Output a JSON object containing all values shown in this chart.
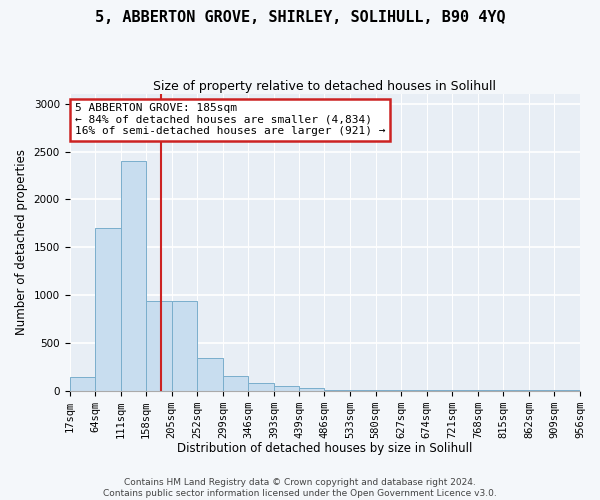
{
  "title": "5, ABBERTON GROVE, SHIRLEY, SOLIHULL, B90 4YQ",
  "subtitle": "Size of property relative to detached houses in Solihull",
  "xlabel": "Distribution of detached houses by size in Solihull",
  "ylabel": "Number of detached properties",
  "footer_line1": "Contains HM Land Registry data © Crown copyright and database right 2024.",
  "footer_line2": "Contains public sector information licensed under the Open Government Licence v3.0.",
  "annotation_line1": "5 ABBERTON GROVE: 185sqm",
  "annotation_line2": "← 84% of detached houses are smaller (4,834)",
  "annotation_line3": "16% of semi-detached houses are larger (921) →",
  "bar_color": "#c8ddef",
  "bar_edgecolor": "#7aaecc",
  "vline_color": "#cc2222",
  "annotation_edgecolor": "#cc2222",
  "bins": [
    17,
    64,
    111,
    158,
    205,
    252,
    299,
    346,
    393,
    439,
    486,
    533,
    580,
    627,
    674,
    721,
    768,
    815,
    862,
    909,
    956
  ],
  "values": [
    140,
    1700,
    2400,
    940,
    940,
    340,
    150,
    80,
    50,
    30,
    8,
    8,
    8,
    8,
    8,
    8,
    5,
    5,
    5,
    5
  ],
  "property_size": 185,
  "ylim": [
    0,
    3100
  ],
  "yticks": [
    0,
    500,
    1000,
    1500,
    2000,
    2500,
    3000
  ],
  "fig_bg": "#f4f7fa",
  "ax_bg": "#e8eef5",
  "title_fontsize": 11,
  "subtitle_fontsize": 9,
  "axis_label_fontsize": 8.5,
  "tick_fontsize": 7.5,
  "annotation_fontsize": 8,
  "footer_fontsize": 6.5
}
